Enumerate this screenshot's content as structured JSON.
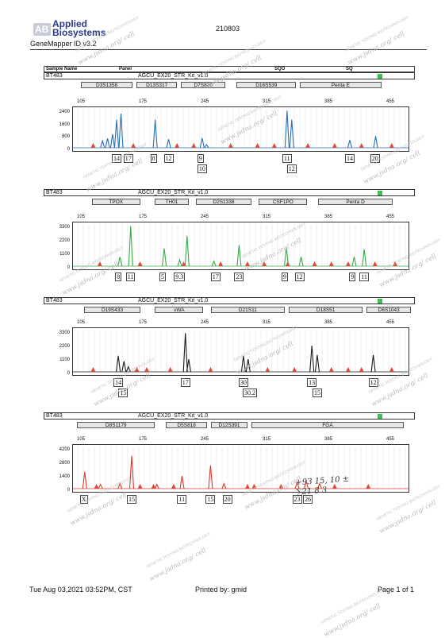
{
  "header": {
    "logo_initials": "AB",
    "logo_text_1": "Applied",
    "logo_text_2": "Biosystems",
    "run_id": "210803",
    "software": "GeneMapper ID v3.2",
    "columns": {
      "sample_name": "Sample Name",
      "panel": "Panel",
      "sqo": "SQO",
      "sq": "SQ"
    }
  },
  "panels": [
    {
      "sample": "BT483",
      "kit": "AGCU_EX20_STR_Kit_v1.0",
      "dye": "blue",
      "color": "#2a6db5",
      "loci": [
        {
          "name": "D3S1358",
          "x": 0.1,
          "w": 0.14
        },
        {
          "name": "D13S317",
          "x": 0.25,
          "w": 0.11
        },
        {
          "name": "D7S820",
          "x": 0.37,
          "w": 0.12
        },
        {
          "name": "D16S539",
          "x": 0.52,
          "w": 0.16
        },
        {
          "name": "Penta E",
          "x": 0.69,
          "w": 0.22
        }
      ],
      "x_ticks": [
        "105",
        "175",
        "245",
        "315",
        "385",
        "455"
      ],
      "y_ticks": [
        "2400",
        "1600",
        "800",
        "0"
      ],
      "peaks": [
        {
          "x": 0.088,
          "h": 0.18
        },
        {
          "x": 0.103,
          "h": 0.24
        },
        {
          "x": 0.118,
          "h": 0.35
        },
        {
          "x": 0.13,
          "h": 0.72
        },
        {
          "x": 0.143,
          "h": 0.88
        },
        {
          "x": 0.245,
          "h": 0.72
        },
        {
          "x": 0.285,
          "h": 0.22
        },
        {
          "x": 0.385,
          "h": 0.25
        },
        {
          "x": 0.398,
          "h": 0.08
        },
        {
          "x": 0.638,
          "h": 0.95
        },
        {
          "x": 0.652,
          "h": 0.72
        },
        {
          "x": 0.825,
          "h": 0.2
        },
        {
          "x": 0.902,
          "h": 0.3
        }
      ],
      "red": [
        0.06,
        0.18,
        0.31,
        0.36,
        0.47,
        0.55,
        0.6,
        0.7,
        0.78,
        0.86,
        0.95
      ],
      "alleles": [
        {
          "label": "14",
          "x": 0.13,
          "row": 0
        },
        {
          "label": "17",
          "x": 0.165,
          "row": 0
        },
        {
          "label": "8",
          "x": 0.245,
          "row": 0
        },
        {
          "label": "12",
          "x": 0.285,
          "row": 0
        },
        {
          "label": "9",
          "x": 0.385,
          "row": 0
        },
        {
          "label": "10",
          "x": 0.385,
          "row": 1
        },
        {
          "label": "11",
          "x": 0.638,
          "row": 0
        },
        {
          "label": "12",
          "x": 0.652,
          "row": 1
        },
        {
          "label": "14",
          "x": 0.825,
          "row": 0
        },
        {
          "label": "20",
          "x": 0.9,
          "row": 0
        }
      ]
    },
    {
      "sample": "BT483",
      "kit": "AGCU_EX20_STR_Kit_v1.0",
      "dye": "green",
      "color": "#3aa84a",
      "loci": [
        {
          "name": "TPOX",
          "x": 0.13,
          "w": 0.13
        },
        {
          "name": "TH01",
          "x": 0.3,
          "w": 0.09
        },
        {
          "name": "D2S1338",
          "x": 0.41,
          "w": 0.15
        },
        {
          "name": "CSF1PO",
          "x": 0.58,
          "w": 0.13
        },
        {
          "name": "Penta D",
          "x": 0.74,
          "w": 0.2
        }
      ],
      "x_ticks": [
        "105",
        "175",
        "245",
        "315",
        "385",
        "455"
      ],
      "y_ticks": [
        "3300",
        "2200",
        "1100",
        "0"
      ],
      "peaks": [
        {
          "x": 0.14,
          "h": 0.22
        },
        {
          "x": 0.172,
          "h": 0.95
        },
        {
          "x": 0.272,
          "h": 0.42
        },
        {
          "x": 0.318,
          "h": 0.15
        },
        {
          "x": 0.34,
          "h": 0.72
        },
        {
          "x": 0.42,
          "h": 0.12
        },
        {
          "x": 0.495,
          "h": 0.5
        },
        {
          "x": 0.636,
          "h": 0.45
        },
        {
          "x": 0.68,
          "h": 0.22
        },
        {
          "x": 0.838,
          "h": 0.22
        },
        {
          "x": 0.868,
          "h": 0.4
        }
      ],
      "red": [
        0.08,
        0.2,
        0.33,
        0.44,
        0.52,
        0.57,
        0.64,
        0.72,
        0.77,
        0.82,
        0.9,
        0.96
      ],
      "alleles": [
        {
          "label": "8",
          "x": 0.14,
          "row": 0
        },
        {
          "label": "11",
          "x": 0.172,
          "row": 0
        },
        {
          "label": "5",
          "x": 0.272,
          "row": 0
        },
        {
          "label": "9.3",
          "x": 0.315,
          "row": 0
        },
        {
          "label": "17",
          "x": 0.425,
          "row": 0
        },
        {
          "label": "23",
          "x": 0.495,
          "row": 0
        },
        {
          "label": "9",
          "x": 0.636,
          "row": 0
        },
        {
          "label": "12",
          "x": 0.675,
          "row": 0
        },
        {
          "label": "9",
          "x": 0.838,
          "row": 0
        },
        {
          "label": "11",
          "x": 0.868,
          "row": 0
        }
      ]
    },
    {
      "sample": "BT483",
      "kit": "AGCU_EX20_STR_Kit_v1.0",
      "dye": "black",
      "color": "#1a1a1a",
      "loci": [
        {
          "name": "D19S433",
          "x": 0.11,
          "w": 0.15
        },
        {
          "name": "vWA",
          "x": 0.3,
          "w": 0.13
        },
        {
          "name": "D21S11",
          "x": 0.45,
          "w": 0.2
        },
        {
          "name": "D18S51",
          "x": 0.66,
          "w": 0.2
        },
        {
          "name": "D6S1043",
          "x": 0.87,
          "w": 0.12
        }
      ],
      "x_ticks": [
        "105",
        "175",
        "245",
        "315",
        "385",
        "455"
      ],
      "y_ticks": [
        "3300",
        "2200",
        "1100",
        "0"
      ],
      "peaks": [
        {
          "x": 0.135,
          "h": 0.38
        },
        {
          "x": 0.152,
          "h": 0.25
        },
        {
          "x": 0.165,
          "h": 0.12
        },
        {
          "x": 0.335,
          "h": 0.92
        },
        {
          "x": 0.345,
          "h": 0.3
        },
        {
          "x": 0.508,
          "h": 0.38
        },
        {
          "x": 0.522,
          "h": 0.3
        },
        {
          "x": 0.712,
          "h": 0.62
        },
        {
          "x": 0.728,
          "h": 0.4
        },
        {
          "x": 0.895,
          "h": 0.4
        }
      ],
      "red": [
        0.06,
        0.19,
        0.22,
        0.29,
        0.41,
        0.58,
        0.66,
        0.77,
        0.82,
        0.86,
        0.95
      ],
      "alleles": [
        {
          "label": "14",
          "x": 0.135,
          "row": 0
        },
        {
          "label": "15",
          "x": 0.15,
          "row": 1
        },
        {
          "label": "17",
          "x": 0.335,
          "row": 0
        },
        {
          "label": "30",
          "x": 0.508,
          "row": 0
        },
        {
          "label": "30.2",
          "x": 0.52,
          "row": 1
        },
        {
          "label": "13",
          "x": 0.712,
          "row": 0
        },
        {
          "label": "15",
          "x": 0.728,
          "row": 1
        },
        {
          "label": "12",
          "x": 0.895,
          "row": 0
        }
      ]
    },
    {
      "sample": "BT483",
      "kit": "AGCU_EX20_STR_Kit_v1.0",
      "dye": "red",
      "color": "#d93a2f",
      "loci": [
        {
          "name": "D8S1179",
          "x": 0.09,
          "w": 0.21
        },
        {
          "name": "D5S818",
          "x": 0.33,
          "w": 0.11
        },
        {
          "name": "D12S391",
          "x": 0.45,
          "w": 0.1
        },
        {
          "name": "FGA",
          "x": 0.56,
          "w": 0.41
        }
      ],
      "x_ticks": [
        "105",
        "175",
        "245",
        "315",
        "385",
        "455"
      ],
      "y_ticks": [
        "4200",
        "2800",
        "1400",
        "0"
      ],
      "peaks": [
        {
          "x": 0.035,
          "h": 0.4
        },
        {
          "x": 0.082,
          "h": 0.1
        },
        {
          "x": 0.14,
          "h": 0.12
        },
        {
          "x": 0.175,
          "h": 0.78
        },
        {
          "x": 0.25,
          "h": 0.1
        },
        {
          "x": 0.325,
          "h": 0.3
        },
        {
          "x": 0.41,
          "h": 0.55
        },
        {
          "x": 0.45,
          "h": 0.12
        },
        {
          "x": 0.668,
          "h": 0.15
        },
        {
          "x": 0.695,
          "h": 0.18
        },
        {
          "x": 0.735,
          "h": 0.12
        }
      ],
      "red": [
        0.07,
        0.2,
        0.24,
        0.3,
        0.52,
        0.54,
        0.62,
        0.78,
        0.88
      ],
      "alleles": [
        {
          "label": "X",
          "x": 0.035,
          "row": 0
        },
        {
          "label": "15",
          "x": 0.175,
          "row": 0
        },
        {
          "label": "11",
          "x": 0.325,
          "row": 0
        },
        {
          "label": "15",
          "x": 0.41,
          "row": 0
        },
        {
          "label": "20",
          "x": 0.46,
          "row": 0
        },
        {
          "label": "23",
          "x": 0.668,
          "row": 0
        },
        {
          "label": "26",
          "x": 0.7,
          "row": 0
        }
      ],
      "handwritten": [
        "+93 15, 10 ±",
        "∑21 8 3"
      ]
    }
  ],
  "watermark": {
    "line1": "GENETIC TESTING BIOTECHNOLOGY",
    "line2": "www.jsdna.org/ cell"
  },
  "footer": {
    "timestamp": "Tue Aug 03,2021 03:52PM, CST",
    "printed_by": "Printed by: gmid",
    "page": "Page 1 of 1"
  }
}
